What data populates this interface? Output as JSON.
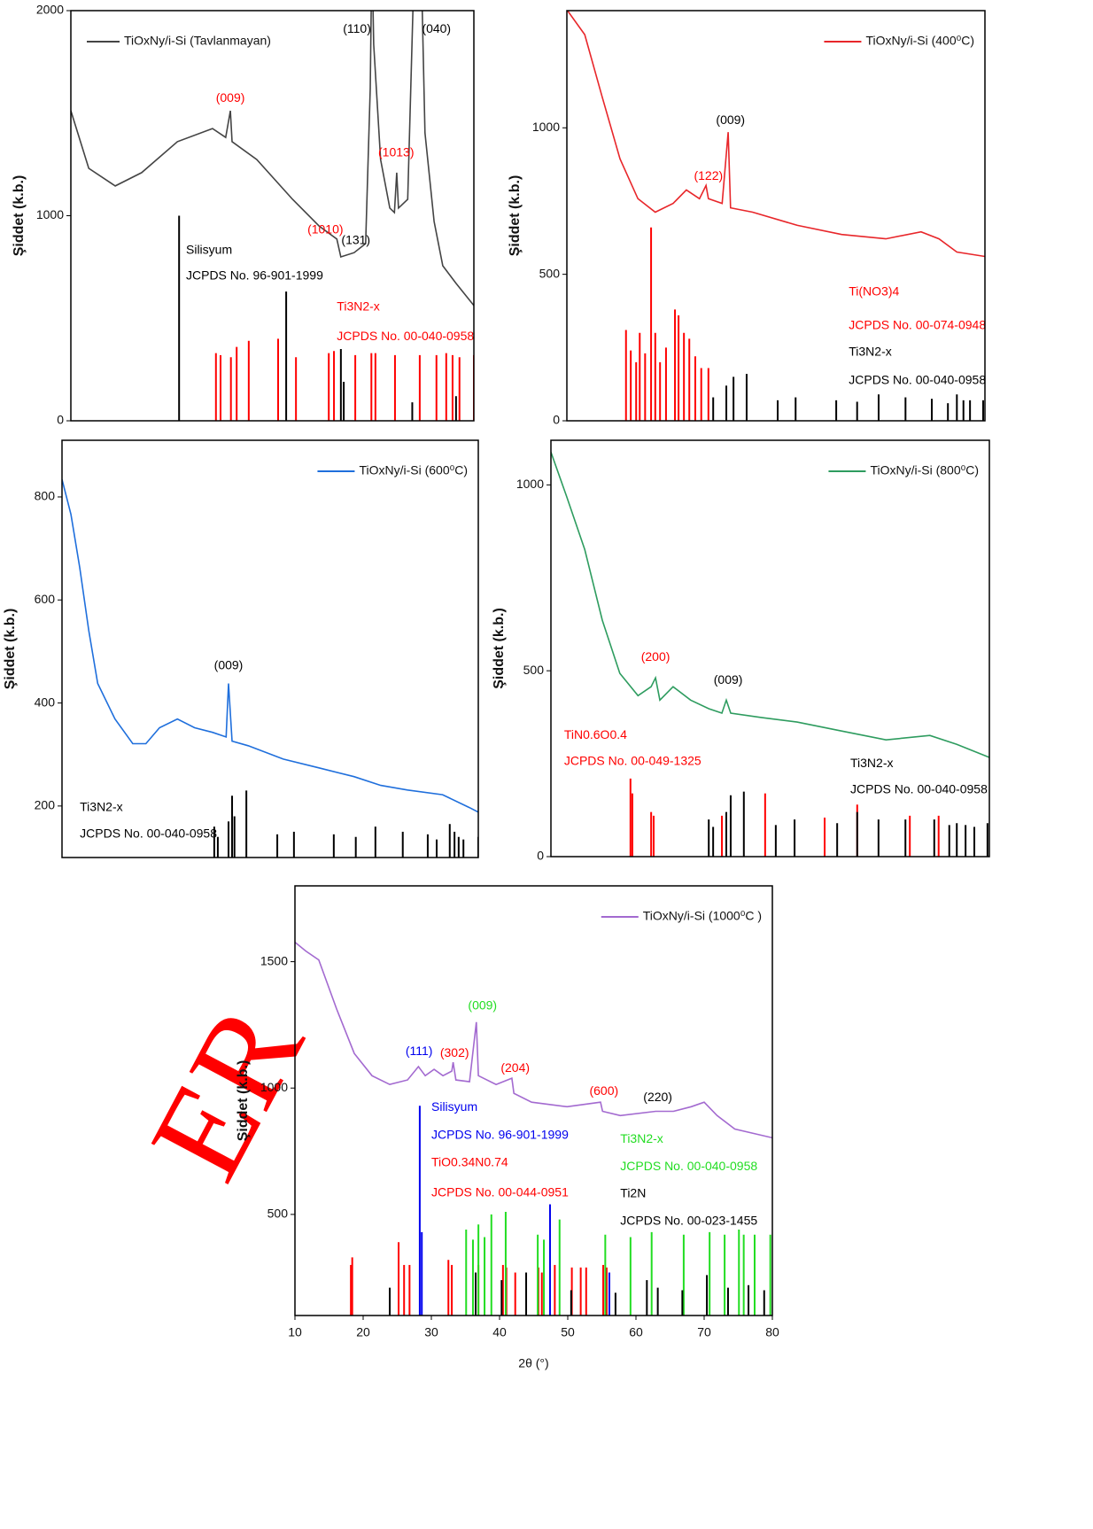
{
  "watermark": "ER",
  "chart_data": [
    {
      "type": "line",
      "legend": "upper left",
      "ylabel": "Şiddet (k.b.)",
      "xlim": [
        10,
        80
      ],
      "ylim": [
        0,
        2000
      ],
      "yticks": [
        0,
        1000,
        2000
      ],
      "series": [
        {
          "name": "TiOxNy/i-Si (Tavlanmayan)",
          "color": "#444444",
          "x": [
            10,
            13.1,
            17.7,
            22.3,
            28.5,
            34.6,
            36.9,
            37.7,
            38.0,
            42.3,
            48.5,
            53.1,
            56.2,
            56.9,
            59.2,
            61.2,
            62.0,
            62.3,
            62.6,
            63.8,
            65.4,
            66.2,
            66.6,
            66.9,
            68.5,
            69.7,
            70.8,
            71.5,
            73.1,
            74.6,
            76.9,
            80
          ],
          "values": [
            1512,
            1231,
            1145,
            1210,
            1361,
            1425,
            1382,
            1512,
            1361,
            1274,
            1080,
            950,
            886,
            799,
            820,
            864,
            1620,
            2300,
            1836,
            1274,
            1037,
            1015,
            1210,
            1037,
            1080,
            2300,
            2300,
            1404,
            972,
            756,
            670,
            562
          ]
        }
      ],
      "references": [
        {
          "color": "#000000",
          "x": [
            28.8,
            47.4,
            56.9,
            57.4,
            69.3,
            76.9
          ],
          "values": [
            1000,
            630,
            350,
            190,
            90,
            120
          ]
        },
        {
          "color": "#ff0000",
          "x": [
            35.2,
            36.0,
            37.8,
            38.8,
            40.9,
            46.0,
            49.1,
            54.8,
            55.7,
            59.4,
            62.2,
            62.9,
            66.3,
            70.6,
            73.5,
            75.2,
            76.3,
            77.5,
            80
          ],
          "values": [
            330,
            320,
            310,
            360,
            390,
            400,
            310,
            330,
            340,
            320,
            330,
            330,
            320,
            320,
            320,
            330,
            320,
            310,
            320
          ]
        }
      ],
      "peak_labels": [
        {
          "text": "(009)",
          "color": "#ff0000",
          "x": 37.7,
          "y": 1570
        },
        {
          "text": "(110)",
          "color": "#000000",
          "x": 59.7,
          "y": 1909
        },
        {
          "text": "(040)",
          "color": "#000000",
          "x": 73.5,
          "y": 1909
        },
        {
          "text": "(1013)",
          "color": "#ff0000",
          "x": 66.5,
          "y": 1305
        },
        {
          "text": "(1010)",
          "color": "#ff0000",
          "x": 54.2,
          "y": 929
        },
        {
          "text": "(131)",
          "color": "#000000",
          "x": 59.5,
          "y": 877
        }
      ],
      "annotations": [
        {
          "text": "Silisyum",
          "color": "#000000",
          "x": 30,
          "y": 830
        },
        {
          "text": "JCPDS No. 96-901-1999",
          "color": "#000000",
          "x": 30,
          "y": 704
        },
        {
          "text": "Ti3N2-x",
          "color": "#ff0000",
          "x": 56.2,
          "y": 553
        },
        {
          "text": "JCPDS No. 00-040-0958",
          "color": "#ff0000",
          "x": 56.2,
          "y": 410
        }
      ]
    },
    {
      "type": "line",
      "legend": "upper right",
      "ylabel": "Şiddet (k.b.)",
      "xlim": [
        10,
        80
      ],
      "ylim": [
        0,
        1400
      ],
      "yticks": [
        0,
        500,
        1000
      ],
      "series": [
        {
          "name": "TiOxNy/i-Si (400⁰C)",
          "color": "#e8262a",
          "x": [
            10,
            13.0,
            15.9,
            18.9,
            21.9,
            24.8,
            27.8,
            30.0,
            32.2,
            33.3,
            33.7,
            36.0,
            37.0,
            37.4,
            41.1,
            48.6,
            56.0,
            63.4,
            69.3,
            72.3,
            75.3,
            80
          ],
          "values": [
            1403,
            1318,
            1106,
            894,
            758,
            712,
            742,
            788,
            758,
            803,
            758,
            742,
            985,
            727,
            712,
            667,
            636,
            621,
            645,
            621,
            576,
            561
          ]
        }
      ],
      "references": [
        {
          "color": "#ff0000",
          "x": [
            19.9,
            20.7,
            21.6,
            22.2,
            23.1,
            24.1,
            24.8,
            25.6,
            26.6,
            28.1,
            28.7,
            29.6,
            30.5,
            31.5,
            32.5,
            33.7
          ],
          "values": [
            310,
            240,
            200,
            300,
            230,
            660,
            300,
            200,
            250,
            380,
            360,
            300,
            280,
            220,
            180,
            180
          ]
        },
        {
          "color": "#000000",
          "x": [
            34.5,
            36.7,
            37.9,
            40.1,
            45.3,
            48.3,
            55.1,
            58.6,
            62.2,
            66.7,
            71.1,
            73.8,
            75.3,
            76.4,
            77.5,
            79.7
          ],
          "values": [
            80,
            120,
            150,
            160,
            70,
            80,
            70,
            65,
            90,
            80,
            75,
            60,
            90,
            70,
            70,
            70
          ]
        }
      ],
      "peak_labels": [
        {
          "text": "(122)",
          "color": "#ff0000",
          "x": 33.7,
          "y": 833
        },
        {
          "text": "(009)",
          "color": "#000000",
          "x": 37.4,
          "y": 1024
        }
      ],
      "annotations": [
        {
          "text": "Ti(NO3)4",
          "color": "#ff0000",
          "x": 57.2,
          "y": 439
        },
        {
          "text": "JCPDS No. 00-074-0948",
          "color": "#ff0000",
          "x": 57.2,
          "y": 324
        },
        {
          "text": "Ti3N2-x",
          "color": "#000000",
          "x": 57.2,
          "y": 233
        },
        {
          "text": "JCPDS No. 00-040-0958",
          "color": "#000000",
          "x": 57.2,
          "y": 136
        }
      ]
    },
    {
      "type": "line",
      "legend": "upper right",
      "ylabel": "Şiddet (k.b.)",
      "xlim": [
        10,
        80
      ],
      "ylim": [
        100,
        910
      ],
      "yticks": [
        200,
        400,
        600,
        800
      ],
      "series": [
        {
          "name": "TiOxNy/i-Si (600⁰C)",
          "color": "#1f6fdc",
          "x": [
            10,
            11.5,
            13.0,
            14.5,
            16.0,
            18.9,
            21.9,
            24.1,
            26.4,
            29.4,
            32.3,
            35.3,
            37.6,
            38.0,
            38.6,
            41.3,
            47.2,
            53.2,
            59.1,
            63.6,
            68.1,
            74.0,
            78.5,
            80
          ],
          "values": [
            834,
            766,
            662,
            541,
            438,
            369,
            321,
            321,
            352,
            369,
            352,
            343,
            334,
            438,
            326,
            317,
            291,
            274,
            257,
            240,
            231,
            222,
            197,
            188
          ]
        }
      ],
      "references": [
        {
          "color": "#000000",
          "x": [
            35.6,
            36.2,
            38.0,
            38.6,
            39.0,
            41.0,
            46.2,
            49.0,
            55.7,
            59.4,
            62.7,
            67.3,
            71.5,
            73.0,
            75.2,
            76.0,
            76.7,
            77.5,
            80
          ],
          "values": [
            160,
            140,
            170,
            220,
            180,
            230,
            145,
            150,
            145,
            140,
            160,
            150,
            145,
            135,
            165,
            150,
            140,
            135,
            140
          ]
        }
      ],
      "peak_labels": [
        {
          "text": "(009)",
          "color": "#000000",
          "x": 38.0,
          "y": 472
        }
      ],
      "annotations": [
        {
          "text": "Ti3N2-x",
          "color": "#000000",
          "x": 13.0,
          "y": 197
        },
        {
          "text": "JCPDS No. 00-040-0958",
          "color": "#000000",
          "x": 13.0,
          "y": 145
        }
      ]
    },
    {
      "type": "line",
      "legend": "upper right",
      "ylabel": "Şiddet (k.b.)",
      "xlim": [
        10,
        80
      ],
      "ylim": [
        0,
        1120
      ],
      "yticks": [
        0,
        500,
        1000
      ],
      "series": [
        {
          "name": "TiOxNy/i-Si (800⁰C)",
          "color": "#2e9c5f",
          "x": [
            10,
            12.5,
            15.4,
            18.2,
            21.0,
            23.9,
            26.0,
            26.7,
            27.4,
            29.5,
            32.3,
            35.2,
            37.3,
            38.0,
            38.7,
            43.7,
            49.3,
            56.4,
            63.5,
            70.5,
            74.8,
            80
          ],
          "values": [
            1088,
            969,
            826,
            636,
            493,
            433,
            457,
            481,
            421,
            457,
            421,
            398,
            386,
            421,
            386,
            374,
            362,
            338,
            314,
            326,
            302,
            267
          ]
        }
      ],
      "references": [
        {
          "color": "#ff0000",
          "x": [
            22.7,
            23.0,
            26.0,
            26.4,
            37.3,
            44.2,
            53.7,
            58.9,
            67.3,
            71.9
          ],
          "values": [
            210,
            170,
            120,
            110,
            110,
            170,
            105,
            140,
            110,
            110
          ]
        },
        {
          "color": "#000000",
          "x": [
            35.2,
            35.9,
            38.0,
            38.7,
            40.8,
            45.9,
            48.9,
            55.7,
            58.9,
            62.3,
            66.6,
            71.2,
            73.6,
            74.8,
            76.2,
            77.6,
            79.7
          ],
          "values": [
            100,
            80,
            120,
            165,
            175,
            85,
            100,
            90,
            120,
            100,
            100,
            100,
            85,
            90,
            85,
            80,
            90
          ]
        }
      ],
      "peak_labels": [
        {
          "text": "(200)",
          "color": "#ff0000",
          "x": 26.7,
          "y": 536
        },
        {
          "text": "(009)",
          "color": "#000000",
          "x": 38.3,
          "y": 474
        }
      ],
      "annotations": [
        {
          "text": "TiN0.6O0.4",
          "color": "#ff0000",
          "x": 12.1,
          "y": 326
        },
        {
          "text": "JCPDS No. 00-049-1325",
          "color": "#ff0000",
          "x": 12.1,
          "y": 255
        },
        {
          "text": "Ti3N2-x",
          "color": "#000000",
          "x": 57.8,
          "y": 250
        },
        {
          "text": "JCPDS No. 00-040-0958",
          "color": "#000000",
          "x": 57.8,
          "y": 179
        }
      ]
    },
    {
      "type": "line",
      "legend": "upper right",
      "ylabel": "Şiddet (k.b.)",
      "xlabel": "2θ (°)",
      "xlim": [
        10,
        80
      ],
      "xticks": [
        10,
        20,
        30,
        40,
        50,
        60,
        70,
        80
      ],
      "ylim": [
        100,
        1800
      ],
      "yticks": [
        500,
        1000,
        1500
      ],
      "series": [
        {
          "name": "TiOxNy/i-Si (1000⁰C )",
          "color": "#a36ad0",
          "x": [
            10,
            11.6,
            13.5,
            16.1,
            18.7,
            21.3,
            23.9,
            26.5,
            28.1,
            29.1,
            30.4,
            31.7,
            33.0,
            33.2,
            33.6,
            35.6,
            36.6,
            36.9,
            39.5,
            41.8,
            42.1,
            44.7,
            49.9,
            54.8,
            55.1,
            57.7,
            62.9,
            65.5,
            68.1,
            70.0,
            71.9,
            74.5,
            80
          ],
          "values": [
            1577,
            1542,
            1507,
            1313,
            1137,
            1049,
            1014,
            1032,
            1085,
            1049,
            1074,
            1049,
            1067,
            1102,
            1032,
            1025,
            1261,
            1049,
            1014,
            1039,
            979,
            944,
            926,
            944,
            908,
            891,
            908,
            908,
            926,
            944,
            891,
            838,
            803
          ]
        }
      ],
      "references": [
        {
          "color": "#ff0000",
          "x": [
            18.2,
            18.4,
            25.2,
            26.0,
            26.8,
            32.5,
            33.0,
            36.9,
            40.5,
            41.0,
            42.3,
            45.7,
            46.2,
            48.1,
            50.6,
            51.9,
            52.7,
            55.2,
            55.7
          ],
          "values": [
            300,
            330,
            390,
            300,
            300,
            320,
            300,
            300,
            300,
            290,
            270,
            290,
            270,
            300,
            290,
            290,
            290,
            300,
            290
          ]
        },
        {
          "color": "#22dd22",
          "x": [
            35.1,
            36.1,
            36.9,
            37.8,
            38.8,
            40.9,
            45.6,
            46.5,
            48.8,
            55.5,
            59.2,
            62.3,
            67.0,
            70.8,
            73.0,
            75.1,
            75.8,
            77.4,
            79.7
          ],
          "values": [
            440,
            400,
            460,
            410,
            500,
            510,
            420,
            400,
            480,
            420,
            410,
            430,
            420,
            430,
            420,
            440,
            420,
            420,
            420
          ]
        },
        {
          "color": "#000000",
          "x": [
            23.9,
            36.5,
            40.3,
            43.9,
            50.5,
            57.0,
            61.6,
            63.2,
            66.8,
            70.4,
            73.5,
            76.5,
            78.8
          ],
          "values": [
            210,
            270,
            240,
            270,
            200,
            190,
            240,
            210,
            200,
            260,
            210,
            220,
            200
          ]
        },
        {
          "color": "#0000ee",
          "x": [
            28.3,
            28.6,
            47.4,
            56.1
          ],
          "values": [
            930,
            430,
            540,
            270
          ]
        }
      ],
      "peak_labels": [
        {
          "text": "(111)",
          "color": "#0000ee",
          "x": 28.2,
          "y": 1144
        },
        {
          "text": "(302)",
          "color": "#ff0000",
          "x": 33.4,
          "y": 1137
        },
        {
          "text": "(009)",
          "color": "#22dd22",
          "x": 37.5,
          "y": 1324
        },
        {
          "text": "(204)",
          "color": "#ff0000",
          "x": 42.3,
          "y": 1077
        },
        {
          "text": "(600)",
          "color": "#ff0000",
          "x": 55.3,
          "y": 986
        },
        {
          "text": "(220)",
          "color": "#000000",
          "x": 63.2,
          "y": 961
        }
      ],
      "annotations": [
        {
          "text": "Silisyum",
          "color": "#0000ee",
          "x": 30.0,
          "y": 922
        },
        {
          "text": "JCPDS No. 96-901-1999",
          "color": "#0000ee",
          "x": 30.0,
          "y": 813
        },
        {
          "text": "TiO0.34N0.74",
          "color": "#ff0000",
          "x": 30.0,
          "y": 704
        },
        {
          "text": "JCPDS No. 00-044-0951",
          "color": "#ff0000",
          "x": 30.0,
          "y": 585
        },
        {
          "text": "Ti3N2-x",
          "color": "#22dd22",
          "x": 57.7,
          "y": 796
        },
        {
          "text": "JCPDS No. 00-040-0958",
          "color": "#22dd22",
          "x": 57.7,
          "y": 687
        },
        {
          "text": "Ti2N",
          "color": "#000000",
          "x": 57.7,
          "y": 581
        },
        {
          "text": "JCPDS No. 00-023-1455",
          "color": "#000000",
          "x": 57.7,
          "y": 472
        }
      ]
    }
  ]
}
